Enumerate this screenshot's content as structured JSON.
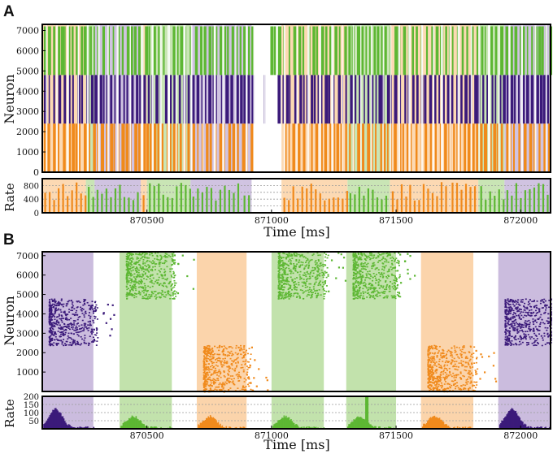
{
  "colors": {
    "pop_purple": "#3b1a7a",
    "pop_green": "#5db733",
    "pop_orange": "#f08a1c",
    "bg_purple": "#c8b8dc",
    "bg_green": "#bfe0a8",
    "bg_orange": "#fbd2a6",
    "grid": "#9a9a9a"
  },
  "chart_data": [
    {
      "panel": "A",
      "kind": "raster",
      "type": "scatter",
      "xlim": [
        870080,
        872120
      ],
      "ylim": [
        0,
        7300
      ],
      "ylabel": "Neuron",
      "yticks": [
        0,
        1000,
        2000,
        3000,
        4000,
        5000,
        6000,
        7000
      ],
      "populations": [
        {
          "name": "orange",
          "range": [
            0,
            2400
          ]
        },
        {
          "name": "purple",
          "range": [
            2400,
            4800
          ]
        },
        {
          "name": "green",
          "range": [
            4800,
            7200
          ]
        }
      ],
      "background_epochs": [
        {
          "start": 870080,
          "end": 870255,
          "color": "orange"
        },
        {
          "start": 870255,
          "end": 870290,
          "color": "green"
        },
        {
          "start": 870290,
          "end": 870475,
          "color": "purple"
        },
        {
          "start": 870475,
          "end": 870500,
          "color": "orange"
        },
        {
          "start": 870500,
          "end": 870675,
          "color": "green"
        },
        {
          "start": 870675,
          "end": 870880,
          "color": "purple"
        },
        {
          "start": 870880,
          "end": 870920,
          "color": "purple"
        },
        {
          "start": 871040,
          "end": 871305,
          "color": "orange"
        },
        {
          "start": 871305,
          "end": 871475,
          "color": "green"
        },
        {
          "start": 871475,
          "end": 871545,
          "color": "orange"
        },
        {
          "start": 871545,
          "end": 871715,
          "color": "orange"
        },
        {
          "start": 871715,
          "end": 871830,
          "color": "orange"
        },
        {
          "start": 871830,
          "end": 871935,
          "color": "green"
        },
        {
          "start": 871935,
          "end": 872120,
          "color": "purple"
        }
      ]
    },
    {
      "panel": "A",
      "kind": "rate",
      "type": "bar",
      "xlim": [
        870080,
        872120
      ],
      "ylim": [
        0,
        1000
      ],
      "ylabel": "Rate",
      "yticks": [
        0,
        400,
        800
      ],
      "xlabel": "Time [ms]",
      "xticks": [
        870500,
        871000,
        871500,
        872000
      ]
    },
    {
      "panel": "B",
      "kind": "raster",
      "type": "scatter",
      "xlim": [
        870080,
        872120
      ],
      "ylim": [
        0,
        7200
      ],
      "ylabel": "Neuron",
      "yticks": [
        1000,
        2000,
        3000,
        4000,
        5000,
        6000,
        7000
      ],
      "populations": [
        {
          "name": "orange",
          "range": [
            0,
            2400
          ]
        },
        {
          "name": "purple",
          "range": [
            2400,
            4800
          ]
        },
        {
          "name": "green",
          "range": [
            4800,
            7200
          ]
        }
      ],
      "bursts": [
        {
          "start": 870080,
          "end": 870285,
          "color": "purple"
        },
        {
          "start": 870390,
          "end": 870600,
          "color": "green"
        },
        {
          "start": 870700,
          "end": 870900,
          "color": "orange"
        },
        {
          "start": 871000,
          "end": 871210,
          "color": "green"
        },
        {
          "start": 871300,
          "end": 871500,
          "color": "green"
        },
        {
          "start": 871600,
          "end": 871810,
          "color": "orange"
        },
        {
          "start": 871910,
          "end": 872120,
          "color": "purple"
        }
      ]
    },
    {
      "panel": "B",
      "kind": "rate",
      "type": "bar",
      "xlim": [
        870080,
        872120
      ],
      "ylim": [
        0,
        200
      ],
      "ylabel": "Rate",
      "yticks": [
        50,
        100,
        150,
        200
      ],
      "xlabel": "Time [ms]",
      "xticks": [
        870500,
        871000,
        871500,
        872000
      ]
    }
  ]
}
